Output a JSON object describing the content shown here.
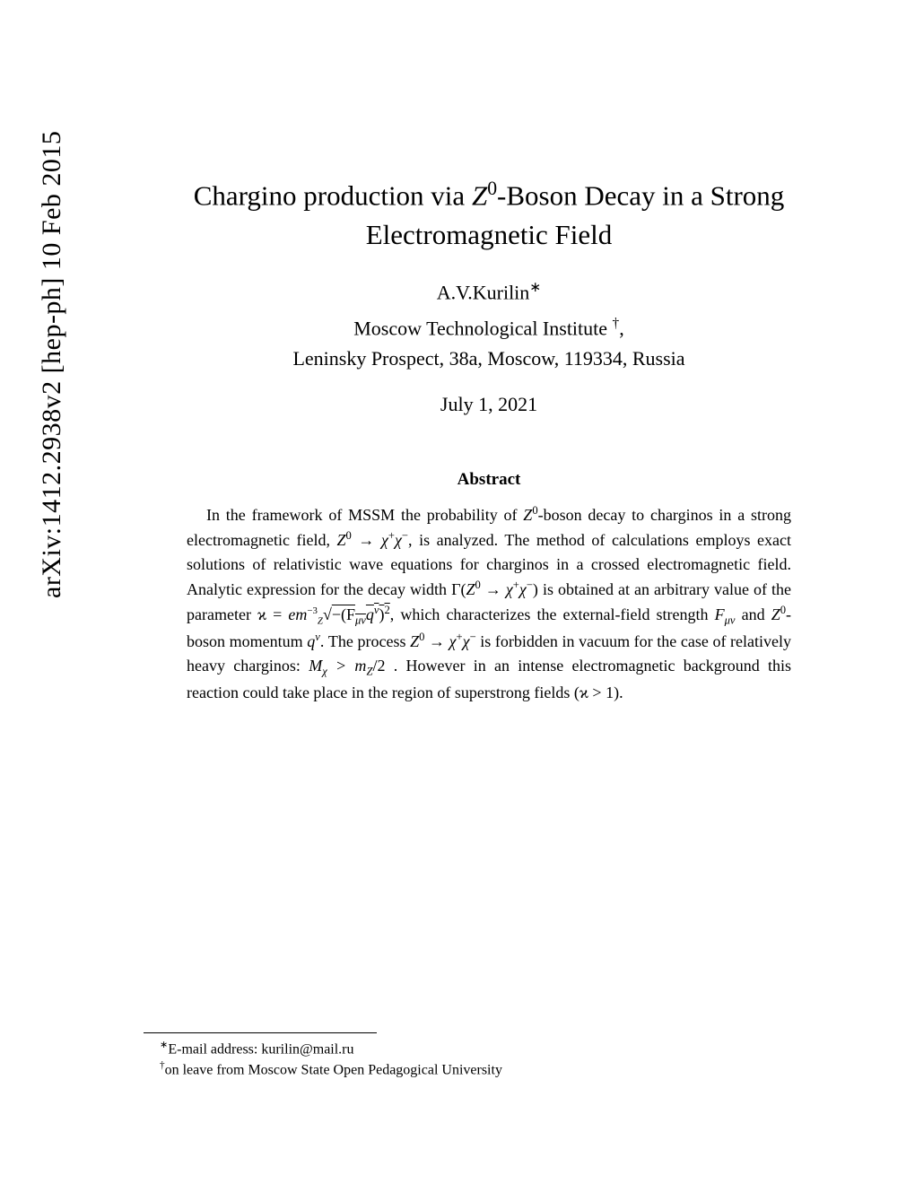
{
  "arxiv": {
    "identifier": "arXiv:1412.2938v2  [hep-ph]  10 Feb 2015"
  },
  "title": {
    "line1": "Chargino production via ",
    "math1": "Z",
    "sup1": "0",
    "line1b": "-Boson Decay in a Strong",
    "line2": "Electromagnetic Field"
  },
  "author": {
    "name": "A.V.Kurilin",
    "marker": "∗"
  },
  "affiliation": {
    "line1": "Moscow Technological Institute ",
    "marker": "†",
    "comma": ",",
    "line2": "Leninsky Prospect, 38a, Moscow, 119334, Russia"
  },
  "date": "July 1, 2021",
  "abstract": {
    "heading": "Abstract",
    "text1": "In the framework of MSSM the probability of ",
    "math_z0": "Z",
    "sup_z0": "0",
    "text2": "-boson decay to charginos in a strong electromagnetic field, ",
    "math_decay": "Z",
    "sup_decay0": "0",
    "arrow1": " → χ",
    "sup_plus": "+",
    "chi2": "χ",
    "sup_minus": "−",
    "text3": ", is analyzed. The method of calculations employs exact solutions of relativistic wave equations for charginos in a crossed electromagnetic field. Analytic expression for the decay width Γ(",
    "math_z0b": "Z",
    "sup_z0b": "0",
    "arrow2": " → χ",
    "sup_plus2": "+",
    "chi3": "χ",
    "sup_minus2": "−",
    "text4": ") is obtained at an arbitrary value of the parameter ϰ = ",
    "math_em": "em",
    "sub_z": "Z",
    "sup_m3": "−3",
    "sqrt": "√",
    "under_sqrt": "−(F",
    "sub_munu": "μν",
    "qnu": "q",
    "sup_nu": "ν",
    "paren_sq": ")",
    "sup_2": "2",
    "text5": ", which characterizes the external-field strength ",
    "f_munu": "F",
    "sub_munu2": "μν",
    "text6": " and ",
    "z0c": "Z",
    "sup_z0c": "0",
    "text7": "-boson momentum ",
    "qnu2": "q",
    "sup_nu2": "ν",
    "text8": ". The process ",
    "z0d": "Z",
    "sup_z0d": "0",
    "arrow3": " → χ",
    "sup_plus3": "+",
    "chi4": "χ",
    "sup_minus3": "−",
    "text9": " is forbidden in vacuum for the case of relatively heavy charginos: ",
    "mchi": "M",
    "sub_chi": "χ",
    "gt": " > m",
    "sub_z2": "Z",
    "half": "/2 . However in an intense electromagnetic background this reaction could take place in the region of superstrong fields (ϰ > 1)."
  },
  "footnotes": {
    "f1_marker": "∗",
    "f1_text": "E-mail address: kurilin@mail.ru",
    "f2_marker": "†",
    "f2_text": "on leave from Moscow State Open Pedagogical University"
  },
  "colors": {
    "background": "#ffffff",
    "text": "#000000"
  },
  "typography": {
    "title_fontsize": 31,
    "author_fontsize": 22,
    "abstract_fontsize": 18,
    "footnote_fontsize": 16,
    "arxiv_fontsize": 30
  }
}
